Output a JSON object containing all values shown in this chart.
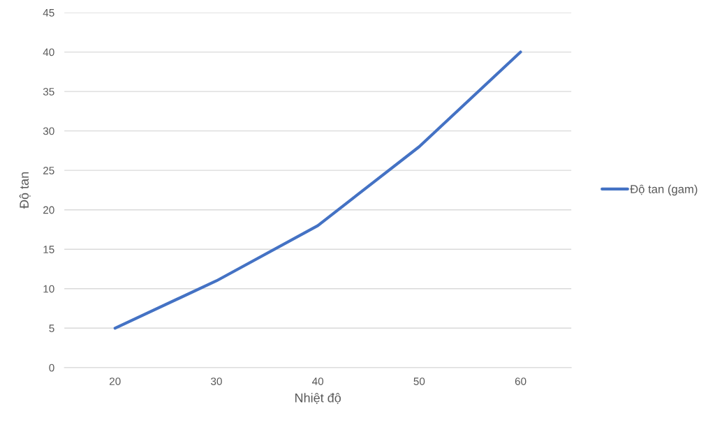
{
  "chart_data": {
    "type": "line",
    "xlabel": "Nhiệt độ",
    "ylabel": "Độ tan",
    "categories": [
      "20",
      "30",
      "40",
      "50",
      "60"
    ],
    "series": [
      {
        "name": "Độ tan (gam)",
        "color": "#4472c4",
        "values": [
          5,
          11,
          18,
          28,
          40
        ]
      }
    ],
    "ylim": [
      0,
      45
    ],
    "yticks": [
      0,
      5,
      10,
      15,
      20,
      25,
      30,
      35,
      40,
      45
    ],
    "grid": "y",
    "legend": "right",
    "marker": "none",
    "line_style": "solid"
  }
}
